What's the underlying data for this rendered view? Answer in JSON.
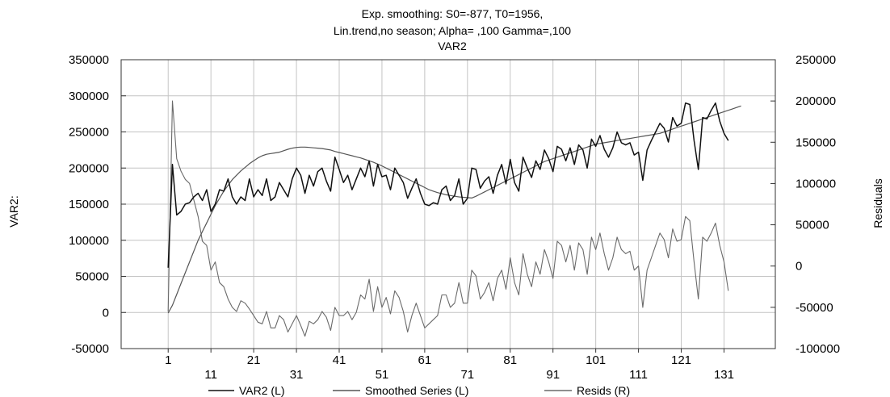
{
  "chart_data": {
    "type": "line",
    "title_lines": [
      "Exp. smoothing:  S0=-877, T0=1956,",
      "Lin.trend,no season; Alpha=  ,100 Gamma=,100",
      "VAR2"
    ],
    "ylabel_left": "VAR2:",
    "ylabel_right": "Residuals",
    "x_range": [
      -10,
      143
    ],
    "ylim_left": [
      -50000,
      350000
    ],
    "ylim_right": [
      -100000,
      250000
    ],
    "x_ticks_row1": [
      "1",
      "21",
      "41",
      "61",
      "81",
      "101",
      "121"
    ],
    "x_ticks_row2": [
      "11",
      "31",
      "51",
      "71",
      "91",
      "111",
      "131"
    ],
    "y_ticks_left": [
      "350000",
      "300000",
      "250000",
      "200000",
      "150000",
      "100000",
      "50000",
      "0",
      "-50000"
    ],
    "y_ticks_right": [
      "250000",
      "200000",
      "150000",
      "100000",
      "50000",
      "0",
      "-50000",
      "-100000"
    ],
    "grid": true,
    "legend_position": "bottom",
    "colors": {
      "var2": "#111111",
      "smoothed": "#555555",
      "resids": "#6a6a6a",
      "grid": "#c4c4c4",
      "axis": "#333333"
    },
    "series": [
      {
        "name": "VAR2 (L)",
        "axis": "left",
        "x_start": 1,
        "values": [
          62000,
          205000,
          135000,
          140000,
          150000,
          152000,
          160000,
          165000,
          155000,
          170000,
          140000,
          150000,
          170000,
          168000,
          185000,
          160000,
          150000,
          160000,
          155000,
          185000,
          160000,
          170000,
          162000,
          185000,
          155000,
          160000,
          180000,
          170000,
          160000,
          185000,
          200000,
          190000,
          165000,
          190000,
          175000,
          195000,
          200000,
          182000,
          168000,
          215000,
          198000,
          180000,
          190000,
          170000,
          185000,
          200000,
          188000,
          210000,
          175000,
          205000,
          188000,
          190000,
          170000,
          200000,
          190000,
          180000,
          158000,
          172000,
          185000,
          165000,
          150000,
          148000,
          152000,
          150000,
          170000,
          175000,
          155000,
          162000,
          185000,
          150000,
          158000,
          200000,
          198000,
          172000,
          182000,
          188000,
          165000,
          190000,
          205000,
          178000,
          212000,
          180000,
          168000,
          215000,
          200000,
          187000,
          210000,
          198000,
          225000,
          213000,
          195000,
          230000,
          226000,
          210000,
          228000,
          205000,
          232000,
          225000,
          200000,
          240000,
          230000,
          245000,
          226000,
          215000,
          228000,
          250000,
          235000,
          232000,
          235000,
          218000,
          222000,
          183000,
          225000,
          238000,
          250000,
          262000,
          255000,
          236000,
          270000,
          258000,
          262000,
          290000,
          288000,
          238000,
          198000,
          270000,
          268000,
          280000,
          290000,
          265000,
          248000,
          238000
        ]
      },
      {
        "name": "Smoothed Series (L)",
        "axis": "left",
        "x_start": 1,
        "values": [
          -877,
          10000,
          25000,
          40000,
          55000,
          70000,
          85000,
          100000,
          112000,
          124000,
          136000,
          148000,
          158000,
          168000,
          176000,
          184000,
          190000,
          196000,
          201000,
          206000,
          210000,
          214000,
          217000,
          219000,
          220000,
          221000,
          222000,
          224000,
          226000,
          227500,
          228500,
          229000,
          229000,
          228500,
          228000,
          227500,
          227000,
          226000,
          225000,
          223000,
          221500,
          220000,
          218500,
          217000,
          215500,
          214000,
          212000,
          210000,
          208000,
          205500,
          203000,
          200000,
          197000,
          194000,
          191000,
          188000,
          185000,
          182000,
          179000,
          176000,
          173000,
          170000,
          168000,
          166000,
          164500,
          163000,
          162000,
          161000,
          160000,
          159500,
          159000,
          158500,
          161000,
          164000,
          167000,
          170000,
          173000,
          176000,
          179000,
          182000,
          185000,
          188000,
          191000,
          194000,
          197000,
          200000,
          203000,
          206000,
          209000,
          211000,
          213000,
          215000,
          217000,
          219000,
          221000,
          223000,
          225000,
          227000,
          229000,
          231000,
          233000,
          234000,
          235000,
          236000,
          237000,
          238000,
          239000,
          240000,
          241000,
          242000,
          243000,
          244000,
          245000,
          246000,
          247000,
          248000,
          250000,
          252000,
          254000,
          256000,
          258000,
          260000,
          262000,
          264000,
          266000,
          268000,
          270000,
          272000,
          274000,
          276000,
          278000,
          280000,
          282000,
          284000,
          286000
        ]
      },
      {
        "name": "Resids (R)",
        "axis": "right",
        "x_start": 1,
        "values": [
          -55000,
          200000,
          130000,
          115000,
          105000,
          100000,
          80000,
          60000,
          30000,
          25000,
          -5000,
          5000,
          -20000,
          -25000,
          -40000,
          -50000,
          -55000,
          -42000,
          -45000,
          -52000,
          -60000,
          -68000,
          -70000,
          -55000,
          -75000,
          -75000,
          -60000,
          -65000,
          -80000,
          -70000,
          -60000,
          -72000,
          -85000,
          -67000,
          -70000,
          -65000,
          -55000,
          -62000,
          -78000,
          -50000,
          -60000,
          -60000,
          -55000,
          -65000,
          -56000,
          -35000,
          -40000,
          -16000,
          -55000,
          -25000,
          -50000,
          -38000,
          -58000,
          -30000,
          -38000,
          -55000,
          -80000,
          -60000,
          -45000,
          -60000,
          -75000,
          -70000,
          -65000,
          -60000,
          -35000,
          -35000,
          -50000,
          -45000,
          -20000,
          -45000,
          -45000,
          -5000,
          -12000,
          -40000,
          -32000,
          -20000,
          -42000,
          -15000,
          -5000,
          -28000,
          10000,
          -20000,
          -35000,
          15000,
          -10000,
          -25000,
          5000,
          -10000,
          20000,
          5000,
          -15000,
          30000,
          25000,
          5000,
          25000,
          -5000,
          28000,
          20000,
          -10000,
          35000,
          20000,
          40000,
          15000,
          -5000,
          10000,
          35000,
          20000,
          15000,
          18000,
          -5000,
          0,
          -50000,
          -5000,
          10000,
          25000,
          40000,
          32000,
          10000,
          45000,
          30000,
          32000,
          60000,
          55000,
          5000,
          -40000,
          35000,
          30000,
          40000,
          52000,
          25000,
          5000,
          -30000
        ]
      }
    ]
  }
}
